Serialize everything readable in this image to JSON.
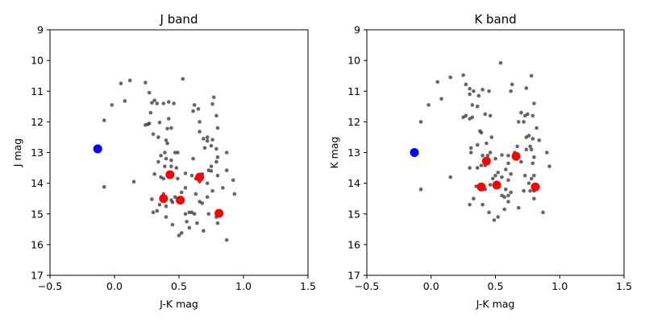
{
  "chart_data": [
    {
      "type": "scatter",
      "title": "J band",
      "xlabel": "J-K mag",
      "ylabel": "J mag",
      "xlim": [
        -0.5,
        1.5
      ],
      "ylim": [
        17,
        9
      ],
      "y_inverted": true,
      "grid": false,
      "xticks": [
        "−0.5",
        "0.0",
        "0.5",
        "1.0",
        "1.5"
      ],
      "xtick_values": [
        -0.5,
        0.0,
        0.5,
        1.0,
        1.5
      ],
      "yticks": [
        "9",
        "10",
        "11",
        "12",
        "13",
        "14",
        "15",
        "16",
        "17"
      ],
      "ytick_values": [
        9,
        10,
        11,
        12,
        13,
        14,
        15,
        16,
        17
      ],
      "series": [
        {
          "color": "#333333",
          "marker": "small-dot",
          "points": [
            [
              0.05,
              10.75
            ],
            [
              0.12,
              10.65
            ],
            [
              0.24,
              10.72
            ],
            [
              0.27,
              11.05
            ],
            [
              -0.02,
              11.45
            ],
            [
              0.08,
              11.32
            ],
            [
              -0.08,
              11.95
            ],
            [
              -0.08,
              14.12
            ],
            [
              0.15,
              13.95
            ],
            [
              0.29,
              11.38
            ],
            [
              0.31,
              11.3
            ],
            [
              0.28,
              11.7
            ],
            [
              0.33,
              11.4
            ],
            [
              0.35,
              12.02
            ],
            [
              0.26,
              12.08
            ],
            [
              0.24,
              12.1
            ],
            [
              0.38,
              11.4
            ],
            [
              0.42,
              11.35
            ],
            [
              0.46,
              11.4
            ],
            [
              0.42,
              11.9
            ],
            [
              0.44,
              12.2
            ],
            [
              0.41,
              12.22
            ],
            [
              0.53,
              10.6
            ],
            [
              0.62,
              11.45
            ],
            [
              0.61,
              11.65
            ],
            [
              0.65,
              11.58
            ],
            [
              0.76,
              11.42
            ],
            [
              0.77,
              11.2
            ],
            [
              0.66,
              12.0
            ],
            [
              0.79,
              11.8
            ],
            [
              0.8,
              12.2
            ],
            [
              0.66,
              12.32
            ],
            [
              0.69,
              12.55
            ],
            [
              0.72,
              12.5
            ],
            [
              0.72,
              12.62
            ],
            [
              0.76,
              12.58
            ],
            [
              0.7,
              12.85
            ],
            [
              0.75,
              12.78
            ],
            [
              0.79,
              12.88
            ],
            [
              0.8,
              13.15
            ],
            [
              0.79,
              13.3
            ],
            [
              0.87,
              13.0
            ],
            [
              0.75,
              13.45
            ],
            [
              0.73,
              13.58
            ],
            [
              0.75,
              13.6
            ],
            [
              0.68,
              13.7
            ],
            [
              0.8,
              13.75
            ],
            [
              0.72,
              14.0
            ],
            [
              0.87,
              13.58
            ],
            [
              0.92,
              13.9
            ],
            [
              0.84,
              14.15
            ],
            [
              0.93,
              14.35
            ],
            [
              0.76,
              14.25
            ],
            [
              0.72,
              14.45
            ],
            [
              0.63,
              14.35
            ],
            [
              0.66,
              14.6
            ],
            [
              0.68,
              14.65
            ],
            [
              0.55,
              14.15
            ],
            [
              0.52,
              14.3
            ],
            [
              0.45,
              14.62
            ],
            [
              0.4,
              14.75
            ],
            [
              0.4,
              15.1
            ],
            [
              0.45,
              15.35
            ],
            [
              0.5,
              15.7
            ],
            [
              0.52,
              15.62
            ],
            [
              0.56,
              15.25
            ],
            [
              0.58,
              15.45
            ],
            [
              0.55,
              15.0
            ],
            [
              0.58,
              14.95
            ],
            [
              0.6,
              14.95
            ],
            [
              0.62,
              15.0
            ],
            [
              0.64,
              15.3
            ],
            [
              0.69,
              15.55
            ],
            [
              0.73,
              15.0
            ],
            [
              0.79,
              15.1
            ],
            [
              0.8,
              15.3
            ],
            [
              0.87,
              15.85
            ],
            [
              0.3,
              14.95
            ],
            [
              0.33,
              14.9
            ],
            [
              0.36,
              13.1
            ],
            [
              0.39,
              13.0
            ],
            [
              0.4,
              13.2
            ],
            [
              0.39,
              13.45
            ],
            [
              0.44,
              13.45
            ],
            [
              0.44,
              13.25
            ],
            [
              0.47,
              13.0
            ],
            [
              0.49,
              13.0
            ],
            [
              0.4,
              12.6
            ],
            [
              0.41,
              12.7
            ],
            [
              0.34,
              13.3
            ],
            [
              0.31,
              13.7
            ],
            [
              0.36,
              13.8
            ],
            [
              0.38,
              13.85
            ],
            [
              0.49,
              13.85
            ],
            [
              0.55,
              13.68
            ],
            [
              0.6,
              13.75
            ],
            [
              0.61,
              13.2
            ],
            [
              0.48,
              13.5
            ],
            [
              0.29,
              14.52
            ],
            [
              0.35,
              14.7
            ],
            [
              0.38,
              14.35
            ],
            [
              0.44,
              14.55
            ],
            [
              0.47,
              14.45
            ],
            [
              0.63,
              13.85
            ],
            [
              0.66,
              13.95
            ],
            [
              0.34,
              12.5
            ],
            [
              0.3,
              12.4
            ],
            [
              0.27,
              12.05
            ]
          ]
        },
        {
          "color": "#ff0000",
          "marker": "large-dot",
          "points": [
            [
              0.43,
              13.72
            ],
            [
              0.66,
              13.8
            ],
            [
              0.38,
              14.5
            ],
            [
              0.51,
              14.55
            ],
            [
              0.81,
              14.98
            ]
          ]
        },
        {
          "color": "#0000ff",
          "marker": "large-dot",
          "points": [
            [
              -0.13,
              12.88
            ]
          ]
        }
      ]
    },
    {
      "type": "scatter",
      "title": "K band",
      "xlabel": "J-K mag",
      "ylabel": "K mag",
      "xlim": [
        -0.5,
        1.5
      ],
      "ylim": [
        17,
        9
      ],
      "y_inverted": true,
      "grid": false,
      "xticks": [
        "−0.5",
        "0.0",
        "0.5",
        "1.0",
        "1.5"
      ],
      "xtick_values": [
        -0.5,
        0.0,
        0.5,
        1.0,
        1.5
      ],
      "yticks": [
        "9",
        "10",
        "11",
        "12",
        "13",
        "14",
        "15",
        "16",
        "17"
      ],
      "ytick_values": [
        9,
        10,
        11,
        12,
        13,
        14,
        15,
        16,
        17
      ],
      "series": [
        {
          "color": "#333333",
          "marker": "small-dot",
          "points": [
            [
              0.05,
              10.7
            ],
            [
              0.15,
              10.55
            ],
            [
              0.25,
              10.48
            ],
            [
              0.27,
              10.78
            ],
            [
              0.3,
              10.92
            ],
            [
              -0.02,
              11.45
            ],
            [
              0.08,
              11.25
            ],
            [
              -0.08,
              12.0
            ],
            [
              -0.08,
              14.2
            ],
            [
              0.15,
              13.8
            ],
            [
              0.3,
              11.1
            ],
            [
              0.33,
              11.0
            ],
            [
              0.37,
              11.15
            ],
            [
              0.4,
              10.95
            ],
            [
              0.45,
              11.0
            ],
            [
              0.32,
              11.45
            ],
            [
              0.36,
              11.5
            ],
            [
              0.27,
              11.8
            ],
            [
              0.25,
              11.85
            ],
            [
              0.3,
              11.9
            ],
            [
              0.32,
              11.85
            ],
            [
              0.42,
              11.75
            ],
            [
              0.46,
              11.8
            ],
            [
              0.38,
              12.3
            ],
            [
              0.39,
              12.35
            ],
            [
              0.54,
              10.08
            ],
            [
              0.62,
              11.0
            ],
            [
              0.63,
              10.78
            ],
            [
              0.74,
              10.9
            ],
            [
              0.78,
              10.5
            ],
            [
              0.7,
              11.7
            ],
            [
              0.73,
              11.8
            ],
            [
              0.75,
              11.75
            ],
            [
              0.79,
              11.8
            ],
            [
              0.8,
              11.4
            ],
            [
              0.68,
              12.0
            ],
            [
              0.72,
              12.0
            ],
            [
              0.74,
              12.5
            ],
            [
              0.76,
              12.45
            ],
            [
              0.79,
              12.55
            ],
            [
              0.82,
              12.2
            ],
            [
              0.84,
              12.6
            ],
            [
              0.77,
              12.8
            ],
            [
              0.74,
              12.9
            ],
            [
              0.78,
              12.9
            ],
            [
              0.8,
              13.15
            ],
            [
              0.79,
              13.35
            ],
            [
              0.7,
              13.3
            ],
            [
              0.65,
              13.0
            ],
            [
              0.67,
              12.8
            ],
            [
              0.6,
              13.1
            ],
            [
              0.6,
              13.35
            ],
            [
              0.55,
              13.08
            ],
            [
              0.52,
              13.65
            ],
            [
              0.55,
              13.8
            ],
            [
              0.58,
              13.55
            ],
            [
              0.6,
              13.9
            ],
            [
              0.62,
              13.7
            ],
            [
              0.73,
              13.75
            ],
            [
              0.78,
              13.85
            ],
            [
              0.8,
              13.75
            ],
            [
              0.76,
              14.0
            ],
            [
              0.77,
              14.25
            ],
            [
              0.72,
              14.25
            ],
            [
              0.8,
              14.25
            ],
            [
              0.8,
              14.5
            ],
            [
              0.87,
              14.95
            ],
            [
              0.92,
              13.45
            ],
            [
              0.9,
              13.0
            ],
            [
              0.52,
              14.0
            ],
            [
              0.55,
              14.4
            ],
            [
              0.57,
              14.45
            ],
            [
              0.6,
              14.4
            ],
            [
              0.6,
              14.6
            ],
            [
              0.57,
              14.85
            ],
            [
              0.52,
              15.1
            ],
            [
              0.49,
              15.2
            ],
            [
              0.45,
              14.95
            ],
            [
              0.4,
              14.7
            ],
            [
              0.3,
              14.7
            ],
            [
              0.33,
              14.5
            ],
            [
              0.35,
              14.1
            ],
            [
              0.38,
              14.15
            ],
            [
              0.42,
              14.2
            ],
            [
              0.46,
              14.05
            ],
            [
              0.48,
              13.85
            ],
            [
              0.5,
              13.75
            ],
            [
              0.36,
              13.5
            ],
            [
              0.39,
              13.42
            ],
            [
              0.42,
              13.42
            ],
            [
              0.3,
              13.5
            ],
            [
              0.31,
              13.0
            ],
            [
              0.31,
              12.85
            ],
            [
              0.36,
              12.75
            ],
            [
              0.4,
              13.1
            ],
            [
              0.44,
              13.1
            ],
            [
              0.46,
              13.0
            ],
            [
              0.43,
              12.7
            ],
            [
              0.47,
              12.5
            ],
            [
              0.5,
              13.2
            ],
            [
              0.68,
              14.8
            ],
            [
              0.62,
              14.3
            ],
            [
              0.58,
              14.2
            ]
          ]
        },
        {
          "color": "#ff0000",
          "marker": "large-dot",
          "points": [
            [
              0.43,
              13.28
            ],
            [
              0.66,
              13.12
            ],
            [
              0.39,
              14.12
            ],
            [
              0.51,
              14.06
            ],
            [
              0.81,
              14.12
            ]
          ]
        },
        {
          "color": "#0000ff",
          "marker": "large-dot",
          "points": [
            [
              -0.13,
              13.0
            ]
          ]
        }
      ]
    }
  ]
}
